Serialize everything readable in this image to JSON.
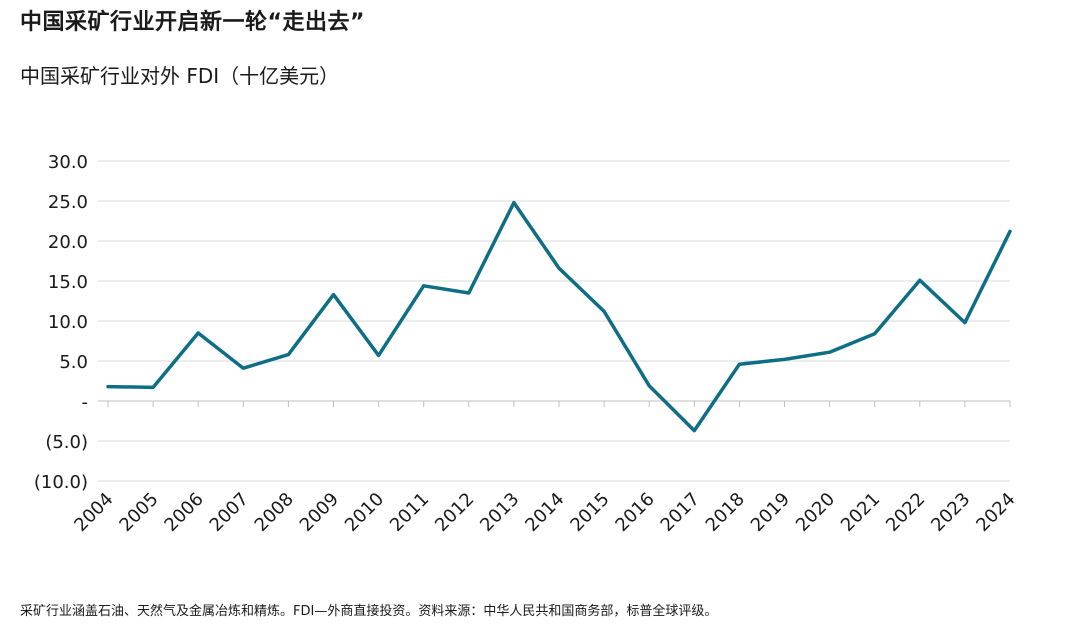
{
  "title": "中国采矿行业开启新一轮“走出去”",
  "subtitle": "中国采矿行业对外 FDI（十亿美元）",
  "footnote": "采矿行业涵盖石油、天然气及金属冶炼和精炼。FDI—外商直接投资。资料来源：中华人民共和国商务部，标普全球评级。",
  "colors": {
    "line": "#0e6e86",
    "grid": "#d9d9d9",
    "axis": "#bfbfbf"
  },
  "chart_data": {
    "type": "line",
    "title": "中国采矿行业对外 FDI（十亿美元）",
    "xlabel": "",
    "ylabel": "",
    "categories": [
      "2004",
      "2005",
      "2006",
      "2007",
      "2008",
      "2009",
      "2010",
      "2011",
      "2012",
      "2013",
      "2014",
      "2015",
      "2016",
      "2017",
      "2018",
      "2019",
      "2020",
      "2021",
      "2022",
      "2023",
      "2024"
    ],
    "series": [
      {
        "name": "中国采矿行业对外 FDI",
        "values": [
          1.8,
          1.7,
          8.5,
          4.1,
          5.8,
          13.3,
          5.7,
          14.4,
          13.5,
          24.8,
          16.6,
          11.2,
          1.9,
          -3.7,
          4.6,
          5.2,
          6.1,
          8.4,
          15.1,
          9.8,
          21.2
        ]
      }
    ],
    "ylim": [
      -10,
      30
    ],
    "yticks": [
      30,
      25,
      20,
      15,
      10,
      5,
      0,
      -5,
      -10
    ],
    "ytick_labels": [
      "30.0",
      "25.0",
      "20.0",
      "15.0",
      "10.0",
      "5.0",
      "-",
      "(5.0)",
      "(10.0)"
    ],
    "grid": true
  }
}
